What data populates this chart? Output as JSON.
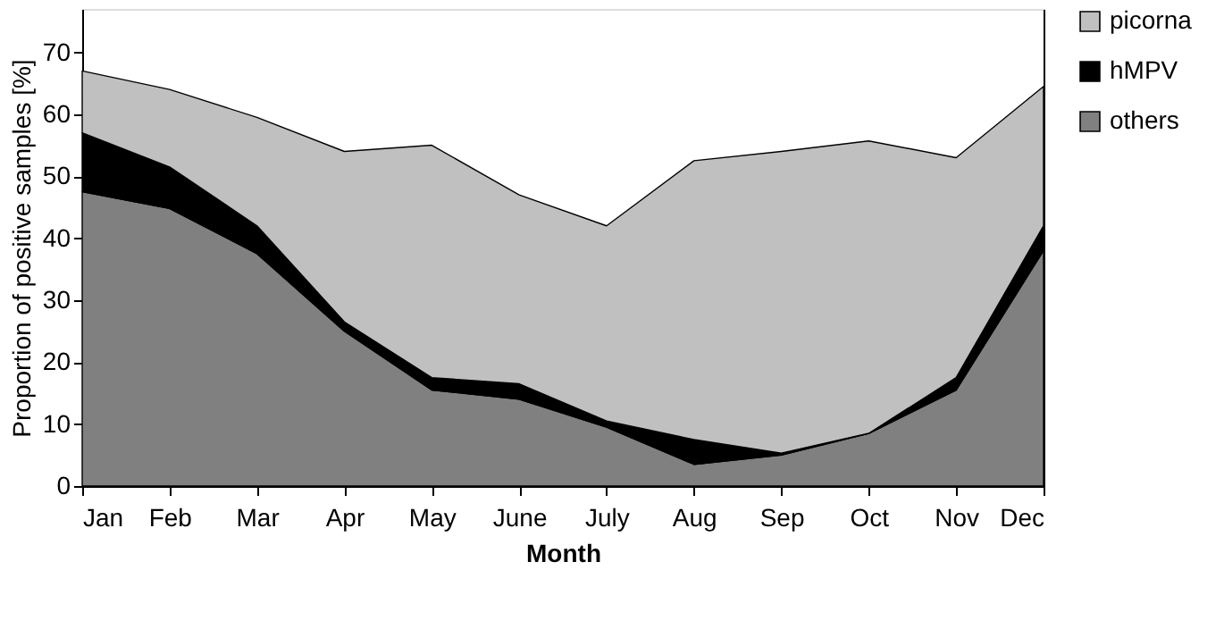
{
  "chart_data": {
    "type": "area",
    "stacked": true,
    "xlabel": "Month",
    "ylabel": "Proportion of positive samples [%]",
    "categories": [
      "Jan",
      "Feb",
      "Mar",
      "Apr",
      "May",
      "June",
      "July",
      "Aug",
      "Sep",
      "Oct",
      "Nov",
      "Dec"
    ],
    "series": [
      {
        "name": "others",
        "color": "#808080",
        "values": [
          47.5,
          44.8,
          37.5,
          25,
          15.5,
          14,
          9.5,
          3.5,
          5,
          8.5,
          15.5,
          38
        ]
      },
      {
        "name": "hMPV",
        "color": "#000000",
        "values": [
          9.5,
          6.7,
          4.5,
          1.5,
          2,
          2.5,
          1,
          4,
          0.3,
          0,
          2,
          4
        ]
      },
      {
        "name": "picorna",
        "color": "#c0c0c0",
        "values": [
          10,
          12.5,
          17.5,
          27.5,
          37.5,
          30.5,
          31.5,
          45,
          48.7,
          47.2,
          35.5,
          22.5
        ]
      }
    ],
    "ylim": [
      0,
      77
    ],
    "yticks": [
      0,
      10,
      20,
      30,
      40,
      50,
      60,
      70
    ],
    "grid": false,
    "legend": "right"
  }
}
